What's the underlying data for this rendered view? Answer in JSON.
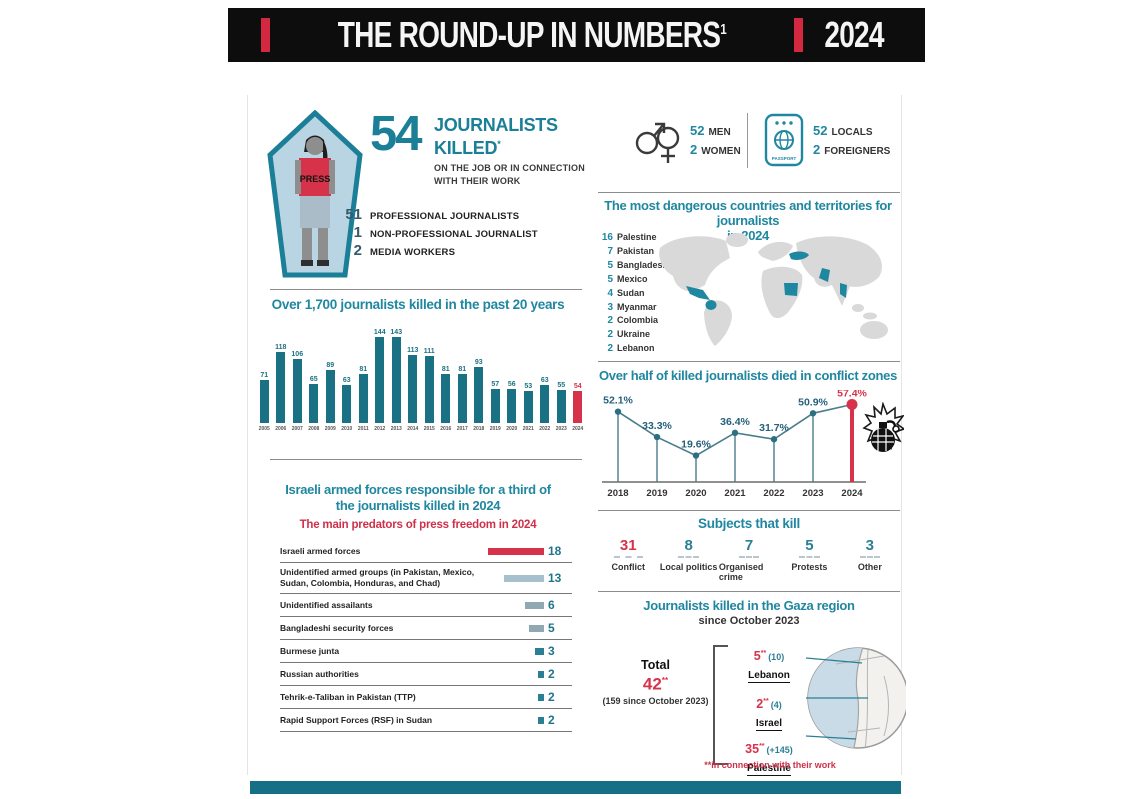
{
  "header": {
    "title": "THE ROUND-UP IN NUMBERS",
    "title_sup": "1",
    "year": "2024"
  },
  "colors": {
    "teal": "#1f87a0",
    "teal_dark": "#1a7184",
    "red": "#d6334b",
    "map_gray": "#d9d9d9",
    "stem": "#4a7d8c",
    "dot": "#2c6f80",
    "label": "#25607a"
  },
  "killed": {
    "press_label": "PRESS",
    "number": "54",
    "label1": "JOURNALISTS",
    "label2": "KILLED",
    "label2_sup": "*",
    "subtext1": "ON THE JOB OR IN CONNECTION",
    "subtext2": "WITH THEIR WORK",
    "breakdown": [
      {
        "value": "51",
        "label": "PROFESSIONAL JOURNALISTS"
      },
      {
        "value": "1",
        "label": "NON-PROFESSIONAL JOURNALIST"
      },
      {
        "value": "2",
        "label": "MEDIA WORKERS"
      }
    ]
  },
  "demographics": {
    "men_value": "52",
    "men_label": "MEN",
    "women_value": "2",
    "women_label": "WOMEN",
    "locals_value": "52",
    "locals_label": "LOCALS",
    "foreigners_value": "2",
    "foreigners_label": "FOREIGNERS",
    "passport_label": "PASSPORT"
  },
  "chart_data": [
    {
      "type": "bar",
      "title": "Over 1,700 journalists killed in the past 20 years",
      "categories": [
        "2005",
        "2006",
        "2007",
        "2008",
        "2009",
        "2010",
        "2011",
        "2012",
        "2013",
        "2014",
        "2015",
        "2016",
        "2017",
        "2018",
        "2019",
        "2020",
        "2021",
        "2022",
        "2023",
        "2024"
      ],
      "values": [
        71,
        118,
        106,
        65,
        89,
        63,
        81,
        144,
        143,
        113,
        111,
        81,
        81,
        93,
        57,
        56,
        53,
        63,
        55,
        54
      ],
      "xlabel": "",
      "ylabel": "",
      "ylim": [
        0,
        150
      ],
      "grid": false,
      "bar_color": "#1a7184",
      "highlight_index": 19,
      "highlight_color": "#d6334b",
      "value_labels": true
    },
    {
      "type": "line",
      "style": "lollipop",
      "title": "Over half of killed journalists died in conflict zones",
      "categories": [
        "2018",
        "2019",
        "2020",
        "2021",
        "2022",
        "2023",
        "2024"
      ],
      "values": [
        52.1,
        33.3,
        19.6,
        36.4,
        31.7,
        50.9,
        57.4
      ],
      "labels": [
        "52.1%",
        "33.3%",
        "19.6%",
        "36.4%",
        "31.7%",
        "50.9%",
        "57.4%"
      ],
      "xlabel": "",
      "ylabel": "",
      "ylim": [
        0,
        70
      ],
      "grid": false,
      "line_color": "#4a7d8c",
      "highlight_index": 6,
      "highlight_color": "#d6334b",
      "legend": "none"
    }
  ],
  "predators": {
    "title1": "Israeli armed forces responsible for a third of",
    "title2": "the journalists killed in 2024",
    "subtitle": "The main predators of press freedom in 2024",
    "rows": [
      {
        "label": "Israeli armed forces",
        "value": 18,
        "color": "#d6334b"
      },
      {
        "label": "Unidentified armed groups (in Pakistan, Mexico, Sudan, Colombia, Honduras, and Chad)",
        "value": 13,
        "color": "#a6c0cd"
      },
      {
        "label": "Unidentified assailants",
        "value": 6,
        "color": "#8fa8b2"
      },
      {
        "label": "Bangladeshi security forces",
        "value": 5,
        "color": "#8fa8b2"
      },
      {
        "label": "Burmese junta",
        "value": 3,
        "color": "#2b7f95"
      },
      {
        "label": "Russian authorities",
        "value": 2,
        "color": "#2b7f95"
      },
      {
        "label": "Tehrik-e-Taliban in Pakistan (TTP)",
        "value": 2,
        "color": "#2b7f95"
      },
      {
        "label": "Rapid Support Forces (RSF) in Sudan",
        "value": 2,
        "color": "#2b7f95"
      }
    ]
  },
  "dangerous": {
    "title1": "The most dangerous countries and territories for journalists",
    "title2": "in 2024",
    "items": [
      {
        "value": "16",
        "label": "Palestine"
      },
      {
        "value": "7",
        "label": "Pakistan"
      },
      {
        "value": "5",
        "label": "Bangladesh"
      },
      {
        "value": "5",
        "label": "Mexico"
      },
      {
        "value": "4",
        "label": "Sudan"
      },
      {
        "value": "3",
        "label": "Myanmar"
      },
      {
        "value": "2",
        "label": "Colombia"
      },
      {
        "value": "2",
        "label": "Ukraine"
      },
      {
        "value": "2",
        "label": "Lebanon"
      }
    ]
  },
  "subjects": {
    "title": "Subjects that kill",
    "items": [
      {
        "value": "31",
        "label": "Conflict",
        "color": "#d6334b"
      },
      {
        "value": "8",
        "label": "Local politics",
        "color": "#2b7f95"
      },
      {
        "value": "7",
        "label": "Organised crime",
        "color": "#2b7f95"
      },
      {
        "value": "5",
        "label": "Protests",
        "color": "#2b7f95"
      },
      {
        "value": "3",
        "label": "Other",
        "color": "#2b7f95"
      }
    ]
  },
  "gaza": {
    "title": "Journalists killed in the Gaza region",
    "subtitle": "since October 2023",
    "total_label": "Total",
    "total_value": "42",
    "total_sup": "**",
    "total_note": "(159 since October 2023)",
    "rows": [
      {
        "value": "5",
        "sup": "**",
        "paren": "(10)",
        "country": "Lebanon"
      },
      {
        "value": "2",
        "sup": "**",
        "paren": "(4)",
        "country": "Israel"
      },
      {
        "value": "35",
        "sup": "**",
        "paren": "(+145)",
        "country": "Palestine"
      }
    ],
    "footnote": "**in connection with their work"
  }
}
